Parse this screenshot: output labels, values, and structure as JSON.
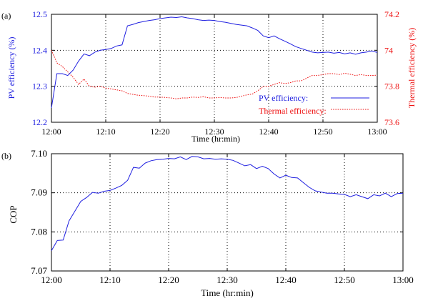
{
  "chart_data": [
    {
      "panel_label": "(a)",
      "type": "line",
      "xlabel": "Time (hr:min)",
      "ylabel": "PV efficiency (%)",
      "ylabel_right": "Thermal efficiency (%)",
      "xlim": [
        0,
        60
      ],
      "ylim": [
        12.2,
        12.5
      ],
      "ylim_right": [
        73.6,
        74.2
      ],
      "x_ticks": [
        0,
        10,
        20,
        30,
        40,
        50,
        60
      ],
      "x_tick_labels": [
        "12:00",
        "12:10",
        "12:20",
        "12:30",
        "12:40",
        "12:50",
        "13:00"
      ],
      "y_ticks": [
        12.2,
        12.3,
        12.4,
        12.5
      ],
      "y_tick_labels": [
        "12.2",
        "12.3",
        "12.4",
        "12.5"
      ],
      "y_ticks_right": [
        73.6,
        73.8,
        74,
        74.2
      ],
      "y_tick_labels_right": [
        "73.6",
        "73.8",
        "74",
        "74.2"
      ],
      "grid": true,
      "legend_position": "bottom-right",
      "colors": {
        "pv": "#1f1fe0",
        "thermal": "#ee1111",
        "left_axis": "#1f1fe0",
        "right_axis": "#ee1111"
      },
      "series": [
        {
          "name": "PV efficiency:",
          "axis": "left",
          "style": "solid",
          "x": [
            0,
            1,
            2,
            3,
            4,
            5,
            6,
            7,
            8,
            9,
            10,
            11,
            12,
            13,
            14,
            15,
            16,
            17,
            18,
            19,
            20,
            21,
            22,
            23,
            24,
            25,
            26,
            27,
            28,
            29,
            30,
            31,
            32,
            33,
            34,
            35,
            36,
            37,
            38,
            39,
            40,
            41,
            42,
            43,
            44,
            45,
            46,
            47,
            48,
            49,
            50,
            51,
            52,
            53,
            54,
            55,
            56,
            57,
            58,
            59,
            60
          ],
          "values": [
            12.24,
            12.335,
            12.335,
            12.33,
            12.345,
            12.37,
            12.39,
            12.385,
            12.395,
            12.4,
            12.402,
            12.405,
            12.412,
            12.415,
            12.468,
            12.472,
            12.477,
            12.48,
            12.483,
            12.485,
            12.488,
            12.49,
            12.492,
            12.491,
            12.493,
            12.49,
            12.488,
            12.485,
            12.483,
            12.484,
            12.483,
            12.48,
            12.478,
            12.475,
            12.472,
            12.47,
            12.468,
            12.462,
            12.455,
            12.44,
            12.435,
            12.44,
            12.432,
            12.425,
            12.418,
            12.41,
            12.405,
            12.4,
            12.395,
            12.393,
            12.394,
            12.395,
            12.392,
            12.394,
            12.39,
            12.393,
            12.389,
            12.393,
            12.395,
            12.398,
            12.394
          ]
        },
        {
          "name": "Thermal efficiency:",
          "axis": "right",
          "style": "dotted",
          "x": [
            0,
            1,
            2,
            3,
            4,
            5,
            6,
            7,
            8,
            9,
            10,
            11,
            12,
            13,
            14,
            15,
            16,
            17,
            18,
            19,
            20,
            21,
            22,
            23,
            24,
            25,
            26,
            27,
            28,
            29,
            30,
            31,
            32,
            33,
            34,
            35,
            36,
            37,
            38,
            39,
            40,
            41,
            42,
            43,
            44,
            45,
            46,
            47,
            48,
            49,
            50,
            51,
            52,
            53,
            54,
            55,
            56,
            57,
            58,
            59,
            60
          ],
          "values": [
            74.0,
            73.93,
            73.91,
            73.88,
            73.85,
            73.81,
            73.84,
            73.8,
            73.795,
            73.8,
            73.79,
            73.785,
            73.78,
            73.775,
            73.76,
            73.755,
            73.75,
            73.748,
            73.745,
            73.74,
            73.74,
            73.738,
            73.735,
            73.73,
            73.735,
            73.735,
            73.74,
            73.738,
            73.742,
            73.735,
            73.735,
            73.738,
            73.735,
            73.735,
            73.737,
            73.745,
            73.752,
            73.757,
            73.775,
            73.8,
            73.8,
            73.81,
            73.82,
            73.815,
            73.82,
            73.83,
            73.83,
            73.845,
            73.86,
            73.86,
            73.865,
            73.87,
            73.87,
            73.865,
            73.872,
            73.867,
            73.86,
            73.865,
            73.86,
            73.86,
            73.862
          ]
        }
      ]
    },
    {
      "panel_label": "(b)",
      "type": "line",
      "xlabel": "Time (hr:min)",
      "ylabel": "COP",
      "xlim": [
        0,
        60
      ],
      "ylim": [
        7.07,
        7.1
      ],
      "x_ticks": [
        0,
        10,
        20,
        30,
        40,
        50,
        60
      ],
      "x_tick_labels": [
        "12:00",
        "12:10",
        "12:20",
        "12:30",
        "12:40",
        "12:50",
        "13:00"
      ],
      "y_ticks": [
        7.07,
        7.08,
        7.09,
        7.1
      ],
      "y_tick_labels": [
        "7.07",
        "7.08",
        "7.09",
        "7.10"
      ],
      "grid": true,
      "colors": {
        "line": "#1f1fe0"
      },
      "series": [
        {
          "axis": "left",
          "style": "solid",
          "x": [
            0,
            1,
            2,
            3,
            4,
            5,
            6,
            7,
            8,
            9,
            10,
            11,
            12,
            13,
            14,
            15,
            16,
            17,
            18,
            19,
            20,
            21,
            22,
            23,
            24,
            25,
            26,
            27,
            28,
            29,
            30,
            31,
            32,
            33,
            34,
            35,
            36,
            37,
            38,
            39,
            40,
            41,
            42,
            43,
            44,
            45,
            46,
            47,
            48,
            49,
            50,
            51,
            52,
            53,
            54,
            55,
            56,
            57,
            58,
            59,
            60
          ],
          "values": [
            7.0752,
            7.0778,
            7.0779,
            7.0828,
            7.0853,
            7.0878,
            7.0888,
            7.0901,
            7.0899,
            7.0904,
            7.0906,
            7.0912,
            7.0919,
            7.0932,
            7.0965,
            7.0963,
            7.0976,
            7.0982,
            7.0985,
            7.0986,
            7.0988,
            7.0987,
            7.0992,
            7.0985,
            7.0993,
            7.0992,
            7.0987,
            7.0988,
            7.0986,
            7.0987,
            7.0986,
            7.0983,
            7.0976,
            7.0969,
            7.0972,
            7.0962,
            7.0968,
            7.0962,
            7.0948,
            7.0938,
            7.0945,
            7.0939,
            7.0938,
            7.0926,
            7.0914,
            7.0905,
            7.0902,
            7.0899,
            7.0899,
            7.0897,
            7.0896,
            7.089,
            7.0895,
            7.089,
            7.0885,
            7.0895,
            7.0892,
            7.0899,
            7.089,
            7.0898,
            7.0899
          ]
        }
      ]
    }
  ]
}
